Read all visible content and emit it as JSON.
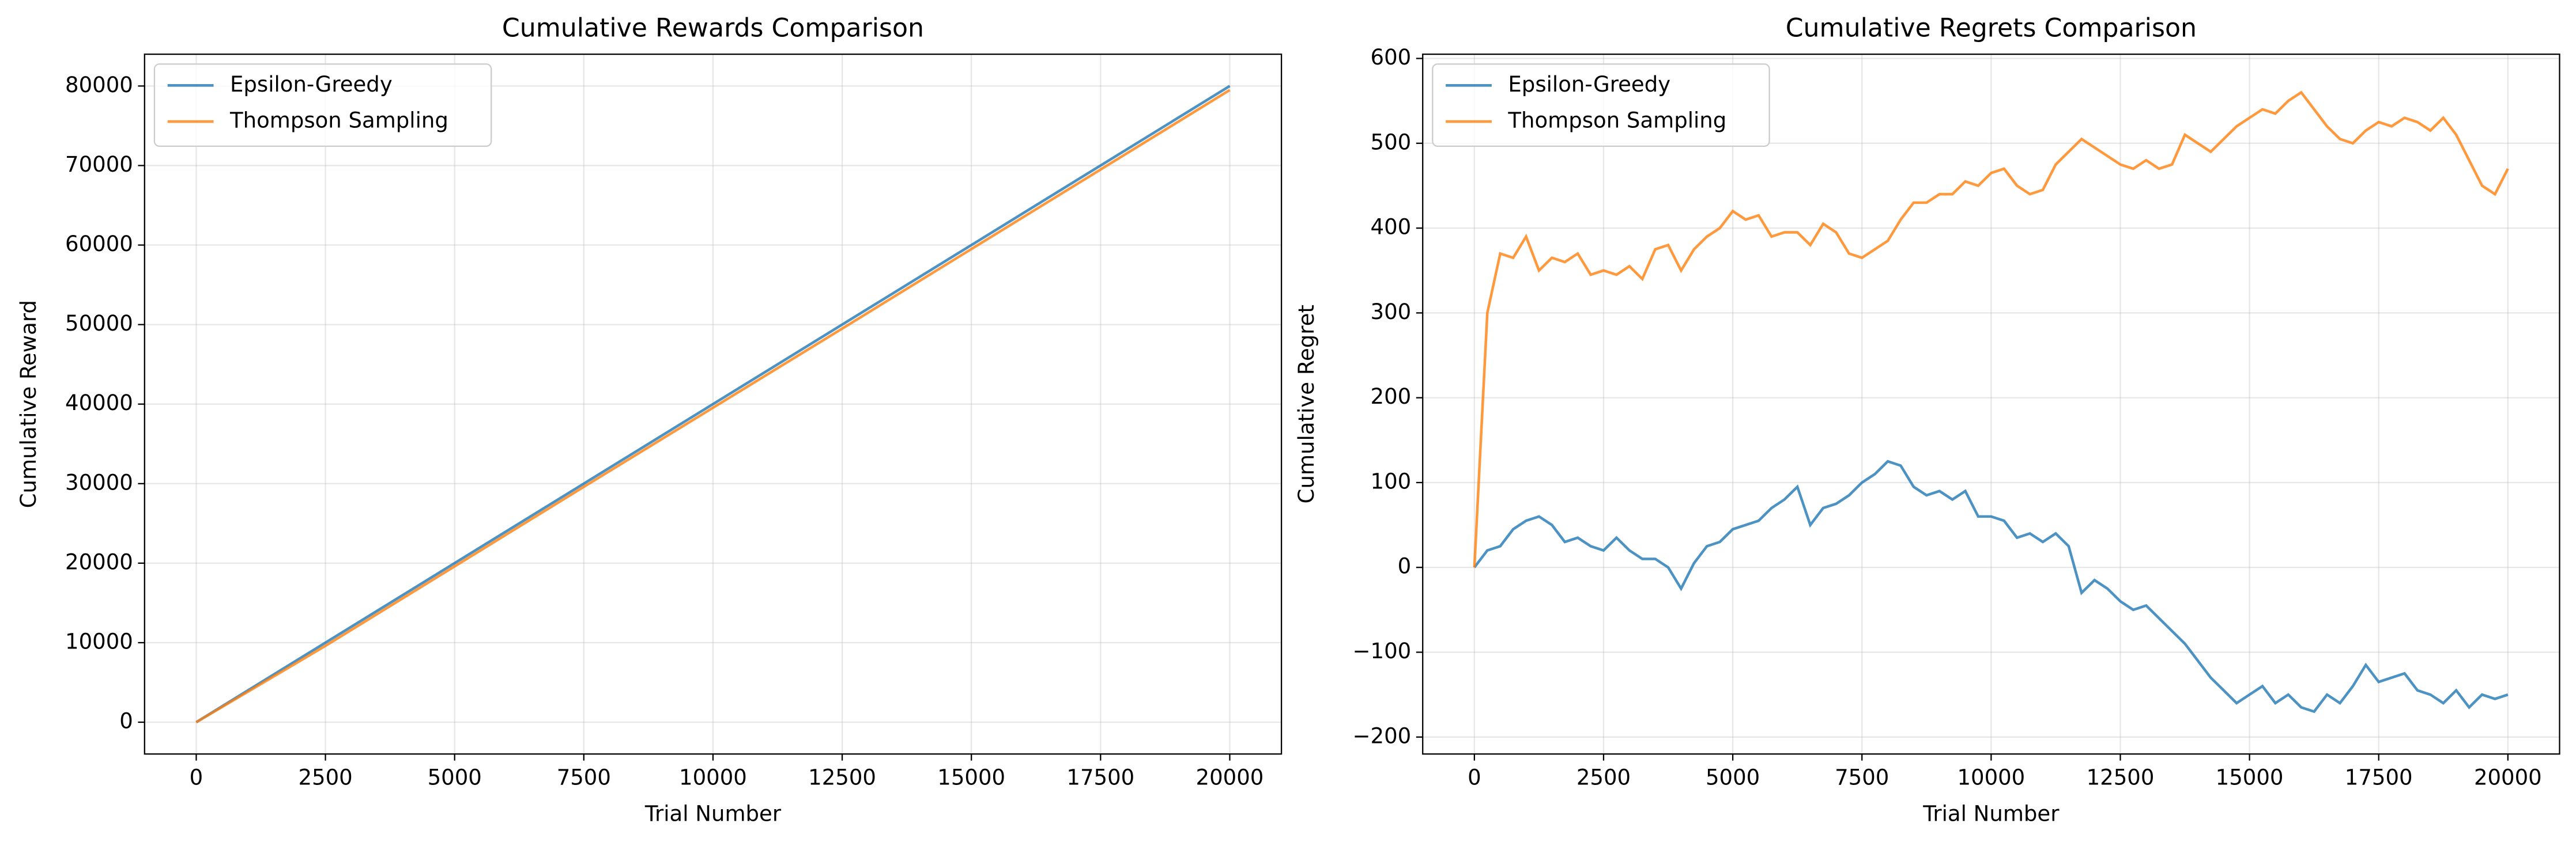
{
  "chart_data": [
    {
      "type": "line",
      "title": "Cumulative Rewards Comparison",
      "xlabel": "Trial Number",
      "ylabel": "Cumulative Reward",
      "x": [
        0,
        2500,
        5000,
        7500,
        10000,
        12500,
        15000,
        17500,
        20000
      ],
      "series": [
        {
          "name": "Epsilon-Greedy",
          "color": "#1f77b4",
          "values": [
            0,
            10000,
            20000,
            30000,
            40000,
            50000,
            60000,
            70000,
            80000
          ]
        },
        {
          "name": "Thompson Sampling",
          "color": "#ff7f0e",
          "values": [
            0,
            9600,
            19600,
            29600,
            39550,
            49500,
            59500,
            69500,
            79500
          ]
        }
      ],
      "xlim": [
        -1000,
        21000
      ],
      "ylim": [
        -4000,
        84000
      ],
      "xticks": [
        0,
        2500,
        5000,
        7500,
        10000,
        12500,
        15000,
        17500,
        20000
      ],
      "yticks": [
        0,
        10000,
        20000,
        30000,
        40000,
        50000,
        60000,
        70000,
        80000
      ],
      "grid": true,
      "legend": "upper left"
    },
    {
      "type": "line",
      "title": "Cumulative Regrets Comparison",
      "xlabel": "Trial Number",
      "ylabel": "Cumulative Regret",
      "x": [
        0,
        250,
        500,
        750,
        1000,
        1250,
        1500,
        1750,
        2000,
        2250,
        2500,
        2750,
        3000,
        3250,
        3500,
        3750,
        4000,
        4250,
        4500,
        4750,
        5000,
        5250,
        5500,
        5750,
        6000,
        6250,
        6500,
        6750,
        7000,
        7250,
        7500,
        7750,
        8000,
        8250,
        8500,
        8750,
        9000,
        9250,
        9500,
        9750,
        10000,
        10250,
        10500,
        10750,
        11000,
        11250,
        11500,
        11750,
        12000,
        12250,
        12500,
        12750,
        13000,
        13250,
        13500,
        13750,
        14000,
        14250,
        14500,
        14750,
        15000,
        15250,
        15500,
        15750,
        16000,
        16250,
        16500,
        16750,
        17000,
        17250,
        17500,
        17750,
        18000,
        18250,
        18500,
        18750,
        19000,
        19250,
        19500,
        19750,
        20000
      ],
      "series": [
        {
          "name": "Epsilon-Greedy",
          "color": "#1f77b4",
          "values": [
            0,
            20,
            25,
            45,
            55,
            60,
            50,
            30,
            35,
            25,
            20,
            35,
            20,
            10,
            10,
            0,
            -25,
            5,
            25,
            30,
            45,
            50,
            55,
            70,
            80,
            95,
            50,
            70,
            75,
            85,
            100,
            110,
            125,
            120,
            95,
            85,
            90,
            80,
            90,
            60,
            60,
            55,
            35,
            40,
            30,
            40,
            25,
            -30,
            -15,
            -25,
            -40,
            -50,
            -45,
            -60,
            -75,
            -90,
            -110,
            -130,
            -145,
            -160,
            -150,
            -140,
            -160,
            -150,
            -165,
            -170,
            -150,
            -160,
            -140,
            -115,
            -135,
            -130,
            -125,
            -145,
            -150,
            -160,
            -145,
            -165,
            -150,
            -155,
            -150
          ]
        },
        {
          "name": "Thompson Sampling",
          "color": "#ff7f0e",
          "values": [
            0,
            300,
            370,
            365,
            390,
            350,
            365,
            360,
            370,
            345,
            350,
            345,
            355,
            340,
            375,
            380,
            350,
            375,
            390,
            400,
            420,
            410,
            415,
            390,
            395,
            395,
            380,
            405,
            395,
            370,
            365,
            375,
            385,
            410,
            430,
            430,
            440,
            440,
            455,
            450,
            465,
            470,
            450,
            440,
            445,
            475,
            490,
            505,
            495,
            485,
            475,
            470,
            480,
            470,
            475,
            510,
            500,
            490,
            505,
            520,
            530,
            540,
            535,
            550,
            560,
            540,
            520,
            505,
            500,
            515,
            525,
            520,
            530,
            525,
            515,
            530,
            510,
            480,
            450,
            440,
            470
          ]
        }
      ],
      "xlim": [
        -1000,
        21000
      ],
      "ylim": [
        -220,
        605
      ],
      "xticks": [
        0,
        2500,
        5000,
        7500,
        10000,
        12500,
        15000,
        17500,
        20000
      ],
      "yticks": [
        {
          "value": -200,
          "label": "−200"
        },
        {
          "value": -100,
          "label": "−100"
        },
        0,
        100,
        200,
        300,
        400,
        500,
        600
      ],
      "grid": true,
      "legend": "upper left"
    }
  ]
}
